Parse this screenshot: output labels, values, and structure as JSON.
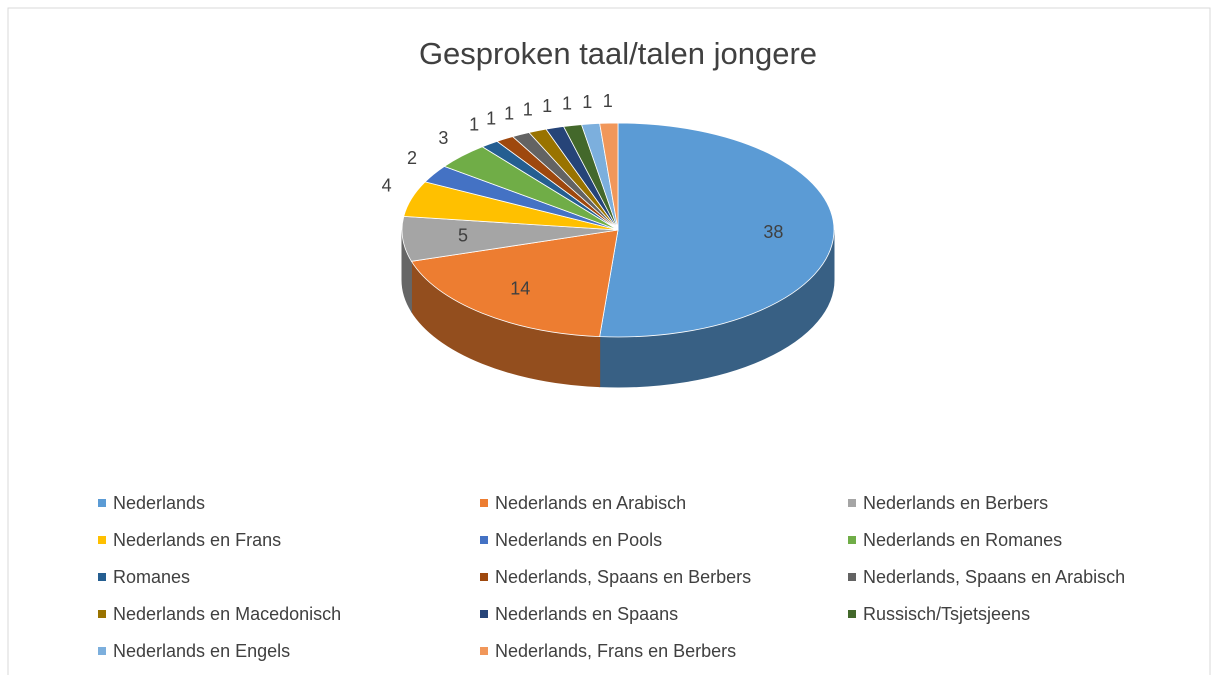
{
  "chart_data": {
    "type": "pie3d",
    "title": "Gesproken taal/talen jongere",
    "categories": [
      "Nederlands",
      "Nederlands en Arabisch",
      "Nederlands en Berbers",
      "Nederlands en Frans",
      "Nederlands en Pools",
      "Nederlands en Romanes",
      "Romanes",
      "Nederlands, Spaans en Berbers",
      "Nederlands, Spaans en Arabisch",
      "Nederlands en Macedonisch",
      "Nederlands en Spaans",
      "Russisch/Tsjetsjeens",
      "Nederlands en Engels",
      "Nederlands, Frans en Berbers"
    ],
    "values": [
      38,
      14,
      5,
      4,
      2,
      3,
      1,
      1,
      1,
      1,
      1,
      1,
      1,
      1
    ],
    "colors": [
      "#5b9bd5",
      "#ed7d31",
      "#a5a5a5",
      "#ffc000",
      "#4472c4",
      "#70ad47",
      "#255e91",
      "#9e480e",
      "#636363",
      "#997300",
      "#264478",
      "#43682b",
      "#7cafdd",
      "#f1975a"
    ],
    "legend": "bottom"
  }
}
